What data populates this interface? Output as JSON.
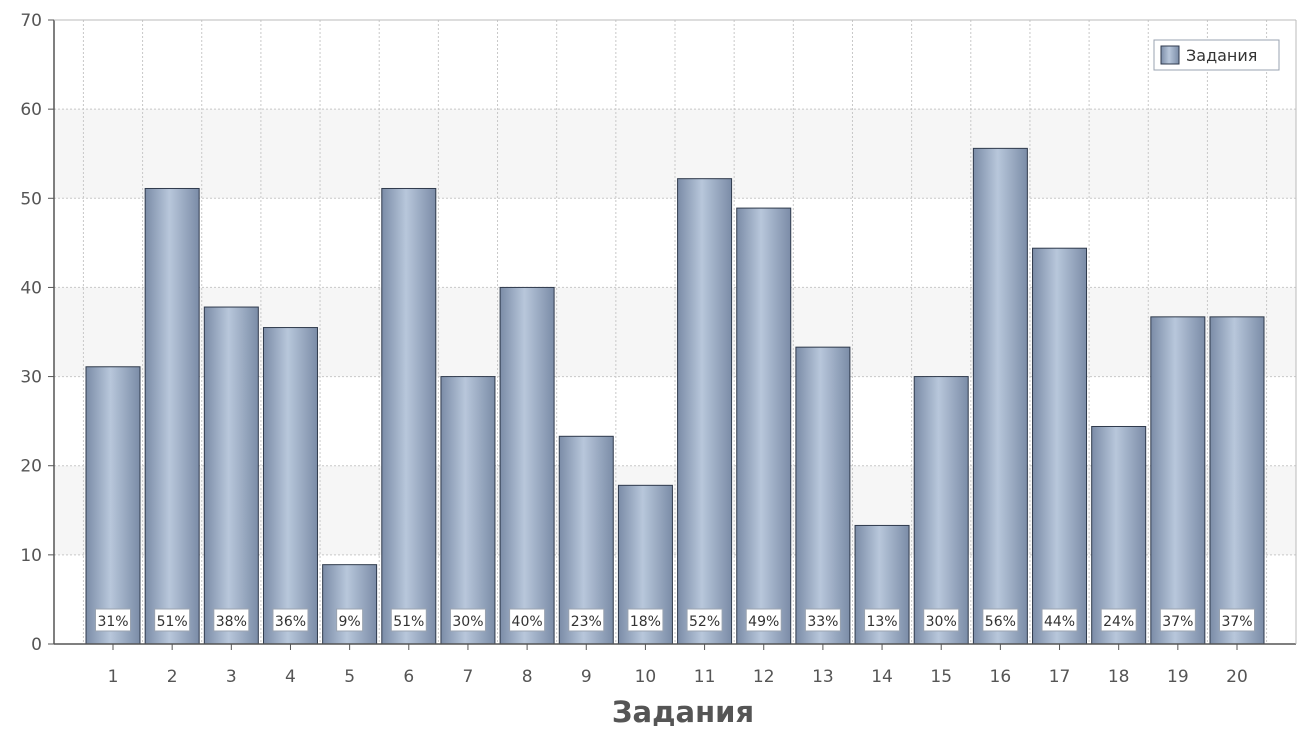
{
  "chart_data": {
    "type": "bar",
    "categories": [
      "1",
      "2",
      "3",
      "4",
      "5",
      "6",
      "7",
      "8",
      "9",
      "10",
      "11",
      "12",
      "13",
      "14",
      "15",
      "16",
      "17",
      "18",
      "19",
      "20"
    ],
    "series": [
      {
        "name": "Задания",
        "values": [
          31.1,
          51.1,
          37.8,
          35.5,
          8.9,
          51.1,
          30.0,
          40.0,
          23.3,
          17.8,
          52.2,
          48.9,
          33.3,
          13.3,
          30.0,
          55.6,
          44.4,
          24.4,
          36.7,
          36.7
        ],
        "data_labels": [
          "31%",
          "51%",
          "38%",
          "36%",
          "9%",
          "51%",
          "30%",
          "40%",
          "23%",
          "18%",
          "52%",
          "49%",
          "33%",
          "13%",
          "30%",
          "56%",
          "44%",
          "24%",
          "37%",
          "37%"
        ]
      }
    ],
    "title": "",
    "xlabel": "Задания",
    "ylabel": "",
    "ylim": [
      0,
      70
    ],
    "yticks": [
      "0",
      "10",
      "20",
      "30",
      "40",
      "50",
      "60",
      "70"
    ],
    "grid": true,
    "legend_position": "top-right",
    "colors": {
      "bar_dark": "#7b8ca7",
      "bar_light": "#b8c7db",
      "bar_edge": "#2f3a4c",
      "axis": "#555555",
      "grid": "#c8c8c8",
      "band_alt": "#f6f6f6"
    }
  }
}
